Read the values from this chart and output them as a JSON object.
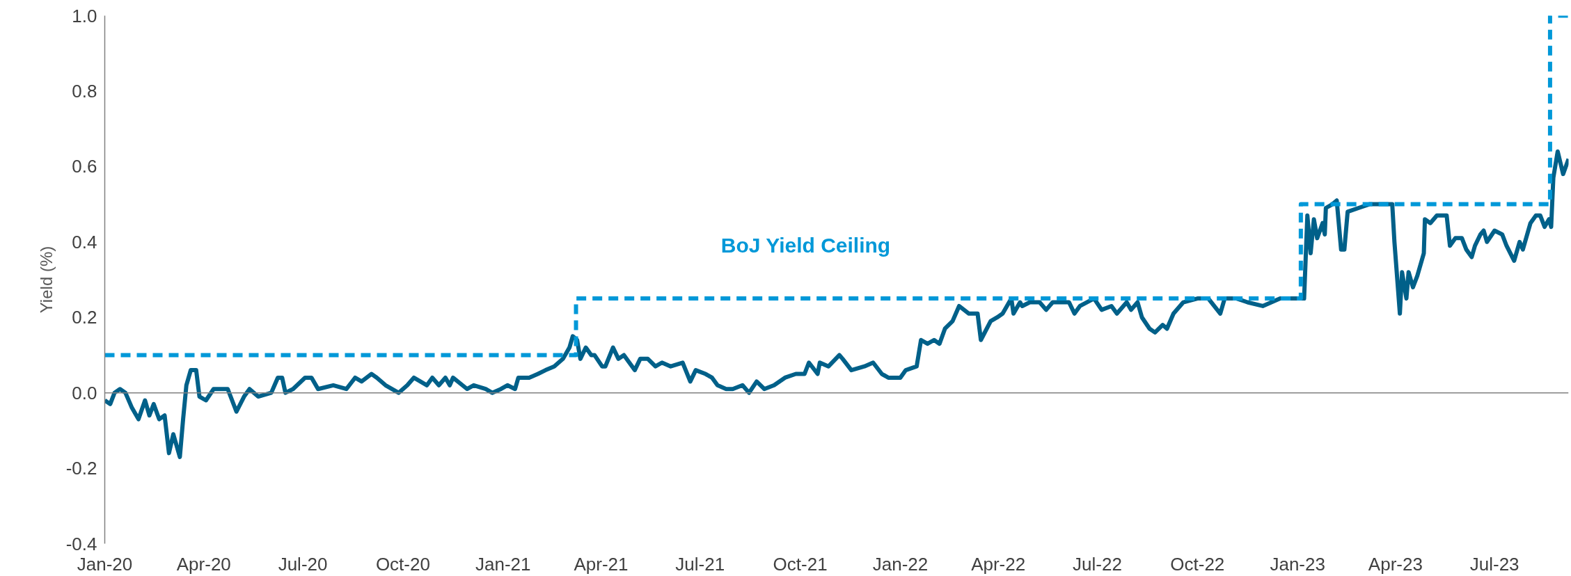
{
  "chart_data": {
    "type": "line",
    "ylabel": "Yield (%)",
    "xlim": [
      "2020-01-01",
      "2023-09-07"
    ],
    "ylim": [
      -0.4,
      1.0
    ],
    "xticks": [
      {
        "value": "2020-01-01",
        "label": "Jan-20"
      },
      {
        "value": "2020-04-01",
        "label": "Apr-20"
      },
      {
        "value": "2020-07-01",
        "label": "Jul-20"
      },
      {
        "value": "2020-10-01",
        "label": "Oct-20"
      },
      {
        "value": "2021-01-01",
        "label": "Jan-21"
      },
      {
        "value": "2021-04-01",
        "label": "Apr-21"
      },
      {
        "value": "2021-07-01",
        "label": "Jul-21"
      },
      {
        "value": "2021-10-01",
        "label": "Oct-21"
      },
      {
        "value": "2022-01-01",
        "label": "Jan-22"
      },
      {
        "value": "2022-04-01",
        "label": "Apr-22"
      },
      {
        "value": "2022-07-01",
        "label": "Jul-22"
      },
      {
        "value": "2022-10-01",
        "label": "Oct-22"
      },
      {
        "value": "2023-01-01",
        "label": "Jan-23"
      },
      {
        "value": "2023-04-01",
        "label": "Apr-23"
      },
      {
        "value": "2023-07-01",
        "label": "Jul-23"
      }
    ],
    "yticks": [
      {
        "value": -0.4,
        "label": "-0.4"
      },
      {
        "value": -0.2,
        "label": "-0.2"
      },
      {
        "value": 0,
        "label": "0.0"
      },
      {
        "value": 0.2,
        "label": "0.2"
      },
      {
        "value": 0.4,
        "label": "0.4"
      },
      {
        "value": 0.6,
        "label": "0.6"
      },
      {
        "value": 0.8,
        "label": "0.8"
      },
      {
        "value": 1.0,
        "label": "1.0"
      }
    ],
    "grid": false,
    "line_style": "solid",
    "marker": "none",
    "ref_lines": [
      {
        "axis": "y",
        "value": 0,
        "color": "#808080",
        "line_style": "solid"
      }
    ],
    "series": [
      {
        "color": "#006089",
        "x": [
          "2020-01-01",
          "2020-01-06",
          "2020-01-10",
          "2020-01-15",
          "2020-01-20",
          "2020-01-26",
          "2020-02-01",
          "2020-02-07",
          "2020-02-11",
          "2020-02-15",
          "2020-02-20",
          "2020-02-25",
          "2020-02-29",
          "2020-03-04",
          "2020-03-10",
          "2020-03-13",
          "2020-03-16",
          "2020-03-20",
          "2020-03-25",
          "2020-03-28",
          "2020-04-03",
          "2020-04-10",
          "2020-04-18",
          "2020-04-23",
          "2020-05-01",
          "2020-05-08",
          "2020-05-13",
          "2020-05-21",
          "2020-06-02",
          "2020-06-08",
          "2020-06-12",
          "2020-06-15",
          "2020-06-22",
          "2020-07-03",
          "2020-07-09",
          "2020-07-15",
          "2020-07-29",
          "2020-08-10",
          "2020-08-18",
          "2020-08-24",
          "2020-09-02",
          "2020-09-07",
          "2020-09-15",
          "2020-09-27",
          "2020-10-05",
          "2020-10-11",
          "2020-10-23",
          "2020-10-28",
          "2020-11-03",
          "2020-11-09",
          "2020-11-13",
          "2020-11-16",
          "2020-11-29",
          "2020-12-05",
          "2020-12-16",
          "2020-12-22",
          "2020-12-30",
          "2021-01-05",
          "2021-01-12",
          "2021-01-15",
          "2021-01-25",
          "2021-02-02",
          "2021-02-09",
          "2021-02-17",
          "2021-02-25",
          "2021-03-03",
          "2021-03-06",
          "2021-03-10",
          "2021-03-13",
          "2021-03-18",
          "2021-03-23",
          "2021-03-26",
          "2021-04-02",
          "2021-04-05",
          "2021-04-12",
          "2021-04-17",
          "2021-04-22",
          "2021-05-02",
          "2021-05-07",
          "2021-05-14",
          "2021-05-21",
          "2021-05-27",
          "2021-06-04",
          "2021-06-15",
          "2021-06-22",
          "2021-06-27",
          "2021-07-06",
          "2021-07-12",
          "2021-07-17",
          "2021-07-25",
          "2021-07-31",
          "2021-08-09",
          "2021-08-15",
          "2021-08-22",
          "2021-08-29",
          "2021-09-07",
          "2021-09-17",
          "2021-09-27",
          "2021-10-05",
          "2021-10-09",
          "2021-10-17",
          "2021-10-19",
          "2021-10-27",
          "2021-11-06",
          "2021-11-09",
          "2021-11-17",
          "2021-11-29",
          "2021-12-07",
          "2021-12-15",
          "2021-12-21",
          "2022-01-01",
          "2022-01-06",
          "2022-01-16",
          "2022-01-20",
          "2022-01-26",
          "2022-02-01",
          "2022-02-06",
          "2022-02-11",
          "2022-02-18",
          "2022-02-24",
          "2022-03-05",
          "2022-03-13",
          "2022-03-16",
          "2022-03-25",
          "2022-03-31",
          "2022-04-05",
          "2022-04-13",
          "2022-04-15",
          "2022-04-21",
          "2022-04-23",
          "2022-04-30",
          "2022-05-09",
          "2022-05-15",
          "2022-05-21",
          "2022-06-05",
          "2022-06-10",
          "2022-06-15",
          "2022-06-28",
          "2022-07-05",
          "2022-07-14",
          "2022-07-19",
          "2022-07-28",
          "2022-08-01",
          "2022-08-07",
          "2022-08-11",
          "2022-08-18",
          "2022-08-23",
          "2022-08-30",
          "2022-09-03",
          "2022-09-09",
          "2022-09-18",
          "2022-10-01",
          "2022-10-11",
          "2022-10-22",
          "2022-10-26",
          "2022-11-06",
          "2022-11-16",
          "2022-11-30",
          "2022-12-16",
          "2023-01-03",
          "2023-01-07",
          "2023-01-10",
          "2023-01-13",
          "2023-01-16",
          "2023-01-19",
          "2023-01-24",
          "2023-01-26",
          "2023-01-27",
          "2023-02-02",
          "2023-02-06",
          "2023-02-10",
          "2023-02-13",
          "2023-02-16",
          "2023-02-26",
          "2023-03-08",
          "2023-03-29",
          "2023-03-31",
          "2023-04-05",
          "2023-04-07",
          "2023-04-11",
          "2023-04-13",
          "2023-04-17",
          "2023-04-21",
          "2023-04-27",
          "2023-04-28",
          "2023-05-03",
          "2023-05-09",
          "2023-05-18",
          "2023-05-21",
          "2023-05-26",
          "2023-06-01",
          "2023-06-05",
          "2023-06-10",
          "2023-06-13",
          "2023-06-18",
          "2023-06-21",
          "2023-06-24",
          "2023-07-01",
          "2023-07-08",
          "2023-07-12",
          "2023-07-19",
          "2023-07-24",
          "2023-07-27",
          "2023-08-03",
          "2023-08-08",
          "2023-08-12",
          "2023-08-16",
          "2023-08-20",
          "2023-08-22",
          "2023-08-24",
          "2023-08-28",
          "2023-09-02",
          "2023-09-07"
        ],
        "values": [
          -0.02,
          -0.03,
          0.0,
          0.01,
          0.0,
          -0.04,
          -0.07,
          -0.02,
          -0.06,
          -0.03,
          -0.07,
          -0.06,
          -0.16,
          -0.11,
          -0.17,
          -0.07,
          0.02,
          0.06,
          0.06,
          -0.01,
          -0.02,
          0.01,
          0.01,
          0.01,
          -0.05,
          -0.01,
          0.01,
          -0.01,
          0.0,
          0.04,
          0.04,
          0.0,
          0.01,
          0.04,
          0.04,
          0.01,
          0.02,
          0.01,
          0.04,
          0.03,
          0.05,
          0.04,
          0.02,
          0.0,
          0.02,
          0.04,
          0.02,
          0.04,
          0.02,
          0.04,
          0.02,
          0.04,
          0.01,
          0.02,
          0.01,
          0.0,
          0.01,
          0.02,
          0.01,
          0.04,
          0.04,
          0.05,
          0.06,
          0.07,
          0.09,
          0.12,
          0.15,
          0.14,
          0.09,
          0.12,
          0.1,
          0.1,
          0.07,
          0.07,
          0.12,
          0.09,
          0.1,
          0.06,
          0.09,
          0.09,
          0.07,
          0.08,
          0.07,
          0.08,
          0.03,
          0.06,
          0.05,
          0.04,
          0.02,
          0.01,
          0.01,
          0.02,
          0.0,
          0.03,
          0.01,
          0.02,
          0.04,
          0.05,
          0.05,
          0.08,
          0.05,
          0.08,
          0.07,
          0.1,
          0.09,
          0.06,
          0.07,
          0.08,
          0.05,
          0.04,
          0.04,
          0.06,
          0.07,
          0.14,
          0.13,
          0.14,
          0.13,
          0.17,
          0.19,
          0.23,
          0.21,
          0.21,
          0.14,
          0.19,
          0.2,
          0.21,
          0.25,
          0.21,
          0.24,
          0.23,
          0.24,
          0.24,
          0.22,
          0.24,
          0.24,
          0.21,
          0.23,
          0.25,
          0.22,
          0.23,
          0.21,
          0.24,
          0.22,
          0.24,
          0.2,
          0.17,
          0.16,
          0.18,
          0.17,
          0.21,
          0.24,
          0.25,
          0.25,
          0.21,
          0.25,
          0.25,
          0.24,
          0.23,
          0.25,
          0.25,
          0.25,
          0.47,
          0.37,
          0.46,
          0.41,
          0.45,
          0.42,
          0.49,
          0.5,
          0.51,
          0.38,
          0.38,
          0.48,
          0.49,
          0.5,
          0.5,
          0.4,
          0.21,
          0.32,
          0.25,
          0.32,
          0.28,
          0.31,
          0.37,
          0.46,
          0.45,
          0.47,
          0.47,
          0.39,
          0.41,
          0.41,
          0.38,
          0.36,
          0.39,
          0.42,
          0.43,
          0.4,
          0.43,
          0.42,
          0.39,
          0.35,
          0.4,
          0.38,
          0.45,
          0.47,
          0.47,
          0.44,
          0.46,
          0.44,
          0.57,
          0.64,
          0.58,
          0.62
        ]
      },
      {
        "name": "BoJ Yield Ceiling",
        "type": "step",
        "color": "#0098d8",
        "line_style": "dashed",
        "x": [
          "2020-01-01",
          "2021-03-09",
          "2023-01-04",
          "2023-08-21",
          "2023-09-07"
        ],
        "values": [
          0.1,
          0.25,
          0.5,
          1.0,
          1.0
        ]
      }
    ]
  }
}
